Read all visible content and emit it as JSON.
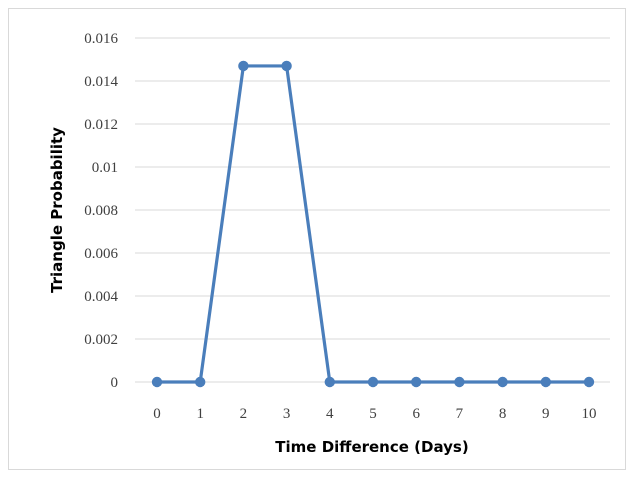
{
  "chart_data": {
    "type": "line",
    "xlabel": "Time Difference (Days)",
    "ylabel": "Triangle Probability",
    "x": [
      0,
      1,
      2,
      3,
      4,
      5,
      6,
      7,
      8,
      9,
      10
    ],
    "series": [
      {
        "values": [
          0,
          0,
          0.0147,
          0.0147,
          0,
          0,
          0,
          0,
          0,
          0,
          0
        ]
      }
    ],
    "xticks": [
      "0",
      "1",
      "2",
      "3",
      "4",
      "5",
      "6",
      "7",
      "8",
      "9",
      "10"
    ],
    "yticks": [
      "0",
      "0.002",
      "0.004",
      "0.006",
      "0.008",
      "0.01",
      "0.012",
      "0.014",
      "0.016"
    ],
    "ylim": [
      0,
      0.016
    ],
    "grid": true,
    "legend": "none",
    "colors": {
      "series": "#4a7ebb",
      "grid": "#d9d9d9"
    }
  }
}
